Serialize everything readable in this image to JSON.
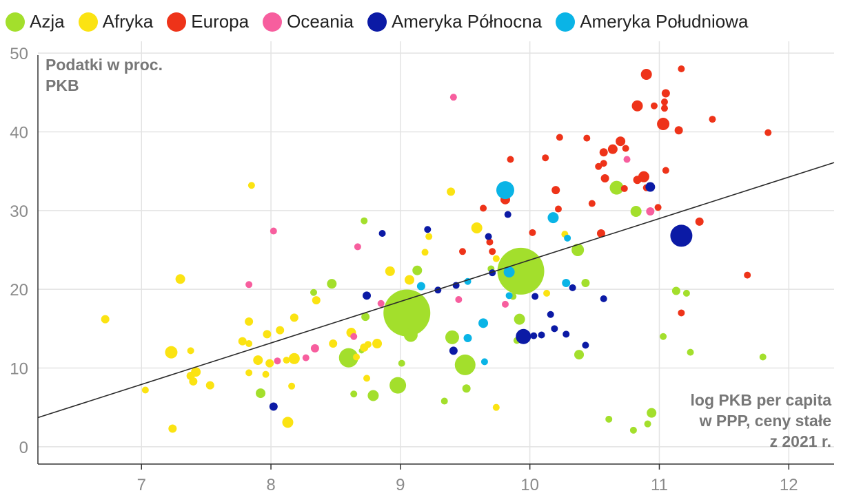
{
  "legend": [
    {
      "label": "Azja",
      "color": "#a3df2c"
    },
    {
      "label": "Afryka",
      "color": "#fbe312"
    },
    {
      "label": "Europa",
      "color": "#ee3319"
    },
    {
      "label": "Oceania",
      "color": "#f75e9e"
    },
    {
      "label": "Ameryka Północna",
      "color": "#0b1aa5"
    },
    {
      "label": "Ameryka Południowa",
      "color": "#0ab4e6"
    }
  ],
  "chart_data": {
    "type": "scatter",
    "title": "",
    "ylabel_lines": [
      "Podatki w proc.",
      "PKB"
    ],
    "xlabel_lines": [
      "log PKB per capita",
      "w PPP, ceny stałe",
      "z 2021 r."
    ],
    "xlim": [
      6.2,
      12.35
    ],
    "ylim": [
      -2.2,
      51.5
    ],
    "xticks": [
      7,
      8,
      9,
      10,
      11,
      12
    ],
    "yticks": [
      0,
      10,
      20,
      30,
      40,
      50
    ],
    "grid": true,
    "trendline": {
      "x": [
        6.2,
        12.35
      ],
      "y": [
        3.7,
        36.1
      ]
    },
    "series": [
      {
        "name": "Azja",
        "color": "#a3df2c",
        "points": [
          [
            9.05,
            17.0,
            34
          ],
          [
            9.93,
            22.3,
            34
          ],
          [
            8.6,
            11.3,
            14
          ],
          [
            9.5,
            10.4,
            15
          ],
          [
            8.98,
            7.8,
            12
          ],
          [
            9.4,
            13.9,
            10
          ],
          [
            9.08,
            14.2,
            10
          ],
          [
            10.67,
            32.9,
            10
          ],
          [
            10.37,
            25.0,
            9
          ],
          [
            10.82,
            29.9,
            8
          ],
          [
            9.92,
            16.2,
            8
          ],
          [
            8.79,
            6.5,
            8
          ],
          [
            7.92,
            6.8,
            7
          ],
          [
            9.13,
            22.4,
            7
          ],
          [
            8.47,
            20.7,
            7
          ],
          [
            10.94,
            4.3,
            7
          ],
          [
            11.13,
            19.8,
            6
          ],
          [
            11.8,
            11.4,
            5
          ],
          [
            10.38,
            11.7,
            7
          ],
          [
            9.51,
            7.4,
            6
          ],
          [
            9.34,
            5.8,
            5
          ],
          [
            10.43,
            20.8,
            6
          ],
          [
            8.73,
            16.5,
            6
          ],
          [
            8.33,
            19.6,
            5
          ],
          [
            8.72,
            28.7,
            5
          ],
          [
            8.64,
            6.7,
            5
          ],
          [
            9.01,
            10.6,
            5
          ],
          [
            9.58,
            27.8,
            5
          ],
          [
            9.87,
            19.1,
            5
          ],
          [
            11.03,
            14.0,
            5
          ],
          [
            11.21,
            19.5,
            5
          ],
          [
            11.24,
            12.0,
            5
          ],
          [
            10.61,
            3.5,
            5
          ],
          [
            10.8,
            2.1,
            5
          ],
          [
            10.91,
            2.9,
            5
          ],
          [
            9.7,
            22.6,
            5
          ],
          [
            9.9,
            13.5,
            5
          ],
          [
            8.7,
            12.2,
            4
          ]
        ]
      },
      {
        "name": "Afryka",
        "color": "#fbe312",
        "points": [
          [
            7.23,
            12.0,
            9
          ],
          [
            8.18,
            11.2,
            8
          ],
          [
            8.13,
            3.1,
            8
          ],
          [
            7.3,
            21.3,
            7
          ],
          [
            6.72,
            16.2,
            6
          ],
          [
            7.03,
            7.2,
            5
          ],
          [
            7.24,
            2.3,
            6
          ],
          [
            7.42,
            9.5,
            7
          ],
          [
            7.38,
            9.0,
            6
          ],
          [
            7.4,
            8.3,
            6
          ],
          [
            7.53,
            7.8,
            6
          ],
          [
            7.85,
            33.2,
            5
          ],
          [
            7.78,
            13.4,
            6
          ],
          [
            7.83,
            15.9,
            6
          ],
          [
            7.83,
            13.1,
            5
          ],
          [
            7.9,
            11.0,
            7
          ],
          [
            7.97,
            14.3,
            6
          ],
          [
            7.96,
            9.2,
            5
          ],
          [
            7.83,
            9.4,
            5
          ],
          [
            7.99,
            10.6,
            6
          ],
          [
            8.07,
            14.8,
            6
          ],
          [
            8.18,
            16.4,
            6
          ],
          [
            8.16,
            7.7,
            5
          ],
          [
            8.35,
            18.6,
            6
          ],
          [
            8.48,
            13.1,
            6
          ],
          [
            8.62,
            14.5,
            7
          ],
          [
            8.66,
            11.4,
            5
          ],
          [
            8.72,
            12.6,
            6
          ],
          [
            8.75,
            13.0,
            5
          ],
          [
            8.74,
            8.7,
            5
          ],
          [
            8.82,
            13.1,
            7
          ],
          [
            8.92,
            22.3,
            7
          ],
          [
            9.07,
            21.2,
            7
          ],
          [
            9.19,
            24.7,
            5
          ],
          [
            9.22,
            26.7,
            5
          ],
          [
            9.39,
            32.4,
            6
          ],
          [
            9.59,
            27.8,
            8
          ],
          [
            9.74,
            23.9,
            5
          ],
          [
            10.13,
            19.5,
            5
          ],
          [
            9.74,
            5.0,
            5
          ],
          [
            10.27,
            27.0,
            5
          ],
          [
            7.38,
            12.2,
            5
          ],
          [
            8.12,
            11.0,
            5
          ]
        ]
      },
      {
        "name": "Europa",
        "color": "#ee3319",
        "points": [
          [
            10.9,
            47.3,
            8
          ],
          [
            10.83,
            43.3,
            8
          ],
          [
            11.03,
            41.0,
            9
          ],
          [
            10.7,
            38.8,
            7
          ],
          [
            10.64,
            37.8,
            7
          ],
          [
            10.57,
            37.4,
            6
          ],
          [
            10.58,
            34.1,
            6
          ],
          [
            10.88,
            34.3,
            8
          ],
          [
            10.83,
            33.9,
            6
          ],
          [
            10.9,
            32.9,
            5
          ],
          [
            10.99,
            30.4,
            5
          ],
          [
            10.73,
            32.8,
            5
          ],
          [
            11.17,
            48.0,
            5
          ],
          [
            11.05,
            44.9,
            6
          ],
          [
            11.04,
            43.8,
            5
          ],
          [
            11.04,
            43.0,
            5
          ],
          [
            10.96,
            43.3,
            5
          ],
          [
            11.15,
            40.2,
            6
          ],
          [
            11.41,
            41.6,
            5
          ],
          [
            11.84,
            39.9,
            5
          ],
          [
            11.05,
            35.1,
            5
          ],
          [
            11.31,
            28.6,
            6
          ],
          [
            11.68,
            21.8,
            5
          ],
          [
            11.17,
            17.0,
            5
          ],
          [
            10.57,
            36.0,
            5
          ],
          [
            10.53,
            35.6,
            5
          ],
          [
            10.55,
            27.1,
            6
          ],
          [
            10.44,
            39.2,
            5
          ],
          [
            10.23,
            39.3,
            5
          ],
          [
            10.12,
            36.7,
            5
          ],
          [
            10.2,
            32.6,
            6
          ],
          [
            10.22,
            30.2,
            5
          ],
          [
            10.48,
            30.9,
            5
          ],
          [
            10.02,
            27.2,
            5
          ],
          [
            9.81,
            31.4,
            7
          ],
          [
            9.85,
            36.5,
            5
          ],
          [
            9.64,
            30.3,
            5
          ],
          [
            9.69,
            26.0,
            5
          ],
          [
            9.71,
            24.8,
            5
          ],
          [
            9.48,
            24.8,
            5
          ],
          [
            10.74,
            37.9,
            5
          ]
        ]
      },
      {
        "name": "Oceania",
        "color": "#f75e9e",
        "points": [
          [
            9.41,
            44.4,
            5
          ],
          [
            10.93,
            29.9,
            6
          ],
          [
            10.75,
            36.5,
            5
          ],
          [
            8.02,
            27.4,
            5
          ],
          [
            8.67,
            25.4,
            5
          ],
          [
            7.83,
            20.6,
            5
          ],
          [
            8.34,
            12.5,
            6
          ],
          [
            8.27,
            11.3,
            5
          ],
          [
            8.05,
            10.9,
            5
          ],
          [
            8.64,
            14.0,
            5
          ],
          [
            8.85,
            18.2,
            5
          ],
          [
            9.45,
            18.7,
            5
          ],
          [
            9.81,
            18.1,
            5
          ]
        ]
      },
      {
        "name": "Ameryka Północna",
        "color": "#0b1aa5",
        "points": [
          [
            11.17,
            26.8,
            16
          ],
          [
            9.95,
            14.0,
            11
          ],
          [
            10.93,
            33.0,
            7
          ],
          [
            8.02,
            5.1,
            6
          ],
          [
            8.74,
            19.2,
            6
          ],
          [
            8.86,
            27.1,
            5
          ],
          [
            9.21,
            27.6,
            5
          ],
          [
            9.29,
            19.9,
            5
          ],
          [
            9.43,
            20.5,
            5
          ],
          [
            9.41,
            12.2,
            6
          ],
          [
            9.68,
            26.7,
            5
          ],
          [
            9.71,
            22.1,
            5
          ],
          [
            9.83,
            29.5,
            5
          ],
          [
            10.04,
            19.1,
            5
          ],
          [
            10.03,
            14.1,
            5
          ],
          [
            10.09,
            14.2,
            5
          ],
          [
            10.16,
            16.8,
            5
          ],
          [
            10.19,
            15.0,
            5
          ],
          [
            10.28,
            14.3,
            5
          ],
          [
            10.33,
            20.2,
            5
          ],
          [
            10.43,
            12.9,
            5
          ],
          [
            10.57,
            18.8,
            5
          ]
        ]
      },
      {
        "name": "Ameryka Południowa",
        "color": "#0ab4e6",
        "points": [
          [
            9.81,
            32.6,
            13
          ],
          [
            10.18,
            29.1,
            8
          ],
          [
            9.84,
            22.2,
            8
          ],
          [
            9.64,
            15.7,
            7
          ],
          [
            10.28,
            20.8,
            6
          ],
          [
            9.52,
            13.8,
            6
          ],
          [
            9.84,
            19.2,
            5
          ],
          [
            9.52,
            21.0,
            5
          ],
          [
            9.65,
            10.8,
            5
          ],
          [
            10.29,
            26.5,
            5
          ],
          [
            9.16,
            20.4,
            6
          ]
        ]
      }
    ]
  }
}
